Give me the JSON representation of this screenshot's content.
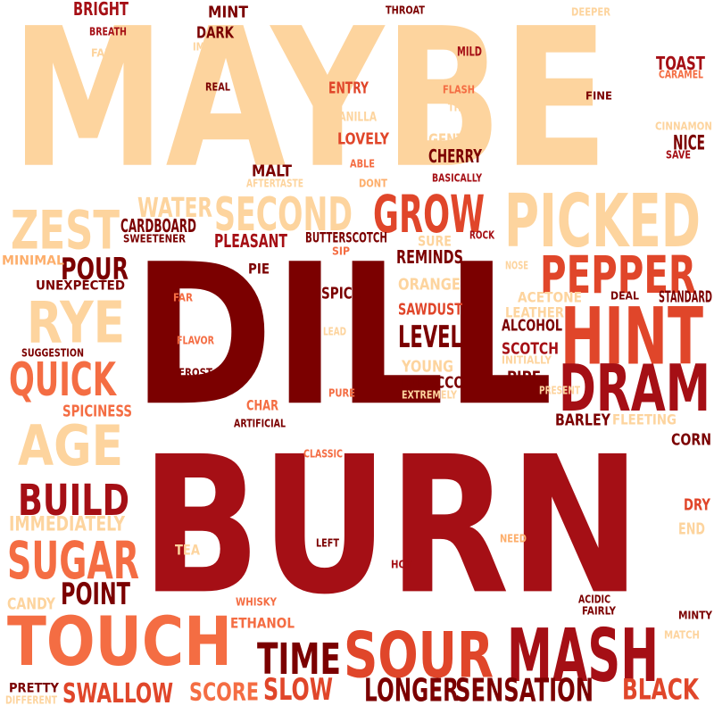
{
  "palette": {
    "maroon": "#7b0000",
    "dark_red": "#a50f15",
    "red": "#c41414",
    "orange_red": "#e0462a",
    "orange": "#f46d43",
    "peach": "#fdae6b",
    "light_peach": "#fdd49e",
    "background": "#ffffff"
  },
  "words": [
    {
      "text": "MAYBE",
      "color": "light_peach"
    },
    {
      "text": "DILL",
      "color": "maroon"
    },
    {
      "text": "BURN",
      "color": "dark_red"
    },
    {
      "text": "PICKED",
      "color": "light_peach"
    },
    {
      "text": "HINT",
      "color": "orange_red"
    },
    {
      "text": "DRAM",
      "color": "dark_red"
    },
    {
      "text": "MASH",
      "color": "dark_red"
    },
    {
      "text": "SOUR",
      "color": "orange_red"
    },
    {
      "text": "TOUCH",
      "color": "orange"
    },
    {
      "text": "PEPPER",
      "color": "orange_red"
    },
    {
      "text": "GROW",
      "color": "orange_red"
    },
    {
      "text": "SECOND",
      "color": "light_peach"
    },
    {
      "text": "ZEST",
      "color": "light_peach"
    },
    {
      "text": "RYE",
      "color": "light_peach"
    },
    {
      "text": "AGE",
      "color": "light_peach"
    },
    {
      "text": "QUICK",
      "color": "orange"
    },
    {
      "text": "SUGAR",
      "color": "orange"
    },
    {
      "text": "BUILD",
      "color": "dark_red"
    },
    {
      "text": "TIME",
      "color": "maroon"
    },
    {
      "text": "LONGER",
      "color": "maroon"
    },
    {
      "text": "SENSATION",
      "color": "maroon"
    },
    {
      "text": "BLACK",
      "color": "orange_red"
    },
    {
      "text": "SLOW",
      "color": "orange_red"
    },
    {
      "text": "SCORE",
      "color": "orange"
    },
    {
      "text": "SWALLOW",
      "color": "orange_red"
    },
    {
      "text": "POINT",
      "color": "maroon"
    },
    {
      "text": "LEVEL",
      "color": "maroon"
    },
    {
      "text": "WATER",
      "color": "light_peach"
    },
    {
      "text": "POUR",
      "color": "maroon"
    },
    {
      "text": "IMMEDIATELY",
      "color": "light_peach"
    },
    {
      "text": "CARDBOARD",
      "color": "maroon"
    },
    {
      "text": "PLEASANT",
      "color": "dark_red"
    },
    {
      "text": "BUTTERSCOTCH",
      "color": "maroon"
    },
    {
      "text": "REMINDS",
      "color": "maroon"
    },
    {
      "text": "MALT",
      "color": "maroon"
    },
    {
      "text": "CHERRY",
      "color": "maroon"
    },
    {
      "text": "TOAST",
      "color": "dark_red"
    },
    {
      "text": "BRIGHT",
      "color": "dark_red"
    },
    {
      "text": "MINT",
      "color": "maroon"
    },
    {
      "text": "DARK",
      "color": "maroon"
    },
    {
      "text": "ENTRY",
      "color": "orange_red"
    },
    {
      "text": "LOVELY",
      "color": "orange_red"
    },
    {
      "text": "GENTLE",
      "color": "light_peach"
    },
    {
      "text": "NICE",
      "color": "maroon"
    },
    {
      "text": "ALCOHOL",
      "color": "maroon"
    },
    {
      "text": "SCOTCH",
      "color": "dark_red"
    },
    {
      "text": "PIPE",
      "color": "maroon"
    },
    {
      "text": "TOBACCO",
      "color": "maroon"
    },
    {
      "text": "SAWDUST",
      "color": "orange_red"
    },
    {
      "text": "ORANGE",
      "color": "light_peach"
    },
    {
      "text": "YOUNG",
      "color": "light_peach"
    },
    {
      "text": "LEATHER",
      "color": "light_peach"
    },
    {
      "text": "ACETONE",
      "color": "light_peach"
    },
    {
      "text": "STANDARD",
      "color": "maroon"
    },
    {
      "text": "SPICE",
      "color": "maroon"
    },
    {
      "text": "SPICINESS",
      "color": "orange"
    },
    {
      "text": "BARLEY",
      "color": "maroon"
    },
    {
      "text": "FLEETING",
      "color": "light_peach"
    },
    {
      "text": "CORN",
      "color": "maroon"
    },
    {
      "text": "DRY",
      "color": "orange_red"
    },
    {
      "text": "END",
      "color": "light_peach"
    },
    {
      "text": "CANDY",
      "color": "light_peach"
    },
    {
      "text": "TEA",
      "color": "light_peach"
    },
    {
      "text": "ETHANOL",
      "color": "orange"
    },
    {
      "text": "PRETTY",
      "color": "maroon"
    },
    {
      "text": "CHAR",
      "color": "orange"
    },
    {
      "text": "PIE",
      "color": "maroon"
    },
    {
      "text": "SURE",
      "color": "light_peach"
    },
    {
      "text": "CARAMEL",
      "color": "orange"
    },
    {
      "text": "MINIMAL",
      "color": "peach"
    },
    {
      "text": "UNEXPECTED",
      "color": "maroon"
    },
    {
      "text": "SWEETENER",
      "color": "maroon"
    },
    {
      "text": "VANILLA",
      "color": "light_peach"
    },
    {
      "text": "CINNAMON",
      "color": "light_peach"
    },
    {
      "text": "BREATH",
      "color": "dark_red"
    },
    {
      "text": "FAIR",
      "color": "light_peach"
    },
    {
      "text": "IMAGINE",
      "color": "light_peach"
    },
    {
      "text": "REAL",
      "color": "maroon"
    },
    {
      "text": "THROAT",
      "color": "maroon"
    },
    {
      "text": "DEEPER",
      "color": "light_peach"
    },
    {
      "text": "MILD",
      "color": "dark_red"
    },
    {
      "text": "FLASH",
      "color": "orange"
    },
    {
      "text": "THINK",
      "color": "light_peach"
    },
    {
      "text": "FINE",
      "color": "maroon"
    },
    {
      "text": "ABLE",
      "color": "orange"
    },
    {
      "text": "DONT",
      "color": "peach"
    },
    {
      "text": "AFTERTASTE",
      "color": "light_peach"
    },
    {
      "text": "BASICALLY",
      "color": "dark_red"
    },
    {
      "text": "SAVE",
      "color": "dark_red"
    },
    {
      "text": "ROCK",
      "color": "dark_red"
    },
    {
      "text": "SIP",
      "color": "orange"
    },
    {
      "text": "NOSE",
      "color": "light_peach"
    },
    {
      "text": "FAR",
      "color": "orange"
    },
    {
      "text": "DEAL",
      "color": "maroon"
    },
    {
      "text": "FLAVOR",
      "color": "orange"
    },
    {
      "text": "LEAD",
      "color": "light_peach"
    },
    {
      "text": "SUGGESTION",
      "color": "maroon"
    },
    {
      "text": "FROST",
      "color": "maroon"
    },
    {
      "text": "INITIALLY",
      "color": "light_peach"
    },
    {
      "text": "PRESENT",
      "color": "light_peach"
    },
    {
      "text": "PURE",
      "color": "orange"
    },
    {
      "text": "EXTREMELY",
      "color": "light_peach"
    },
    {
      "text": "ARTIFICIAL",
      "color": "maroon"
    },
    {
      "text": "CLASSIC",
      "color": "orange"
    },
    {
      "text": "LEFT",
      "color": "maroon"
    },
    {
      "text": "NEED",
      "color": "peach"
    },
    {
      "text": "HOT",
      "color": "dark_red"
    },
    {
      "text": "WHISKY",
      "color": "orange"
    },
    {
      "text": "ACIDIC",
      "color": "maroon"
    },
    {
      "text": "FAIRLY",
      "color": "maroon"
    },
    {
      "text": "MINTY",
      "color": "maroon"
    },
    {
      "text": "MATCH",
      "color": "light_peach"
    },
    {
      "text": "DIFFERENT",
      "color": "light_peach"
    }
  ]
}
